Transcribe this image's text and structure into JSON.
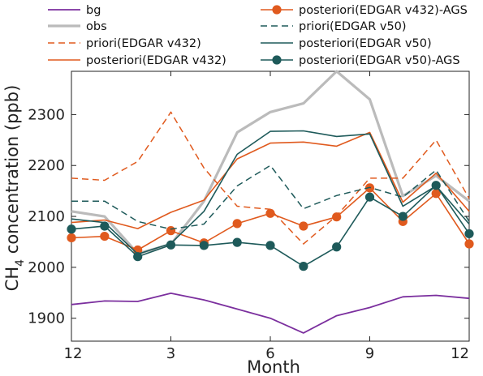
{
  "chart_data": {
    "type": "line",
    "xlabel": "Month",
    "ylabel_prefix": "CH",
    "ylabel_sub": "4",
    "ylabel_suffix": " concentration (ppb)",
    "x_positions": [
      0,
      1,
      2,
      3,
      4,
      5,
      6,
      7,
      8,
      9,
      10,
      11,
      12
    ],
    "xticks": [
      0,
      3,
      6,
      9,
      12
    ],
    "xtick_labels": [
      "12",
      "3",
      "6",
      "9",
      "12"
    ],
    "xlim": [
      0,
      12
    ],
    "ylim": [
      1855,
      2385
    ],
    "yticks": [
      1900,
      2000,
      2100,
      2200,
      2300
    ],
    "ytick_labels": [
      "1900",
      "2000",
      "2100",
      "2200",
      "2300"
    ],
    "legend_placement": "top",
    "series": [
      {
        "name": "bg",
        "color": "#7b2f9e",
        "dash": "solid",
        "marker": false,
        "width": 1.8,
        "values": [
          1927,
          1934,
          1933,
          1949,
          1936,
          1918,
          1900,
          1871,
          1905,
          1921,
          1942,
          1945,
          1939
        ]
      },
      {
        "name": "obs",
        "color": "#bbbbbb",
        "dash": "solid",
        "marker": false,
        "width": 3.2,
        "values": [
          2110,
          2100,
          2027,
          2045,
          2130,
          2265,
          2305,
          2322,
          2385,
          2330,
          2140,
          2180,
          2130
        ]
      },
      {
        "name": "priori(EDGAR v432)",
        "color": "#e05a1e",
        "dash": "dashed",
        "marker": false,
        "width": 1.5,
        "values": [
          2175,
          2171,
          2208,
          2305,
          2195,
          2120,
          2114,
          2046,
          2101,
          2175,
          2175,
          2250,
          2135
        ]
      },
      {
        "name": "posteriori(EDGAR v432)",
        "color": "#e05a1e",
        "dash": "solid",
        "marker": false,
        "width": 1.6,
        "values": [
          2088,
          2093,
          2076,
          2108,
          2132,
          2213,
          2244,
          2246,
          2238,
          2265,
          2128,
          2185,
          2110
        ]
      },
      {
        "name": "posteriori(EDGAR v432)-AGS",
        "color": "#e05a1e",
        "dash": "solid",
        "marker": true,
        "width": 1.6,
        "values": [
          2058,
          2061,
          2034,
          2072,
          2048,
          2086,
          2106,
          2081,
          2099,
          2156,
          2090,
          2145,
          2046
        ]
      },
      {
        "name": "priori(EDGAR v50)",
        "color": "#1e5a5a",
        "dash": "dashed",
        "marker": false,
        "width": 1.5,
        "values": [
          2130,
          2130,
          2090,
          2075,
          2085,
          2160,
          2200,
          2115,
          2141,
          2157,
          2138,
          2191,
          2090
        ]
      },
      {
        "name": "posteriori(EDGAR v50)",
        "color": "#1e5a5a",
        "dash": "solid",
        "marker": false,
        "width": 1.6,
        "values": [
          2095,
          2088,
          2026,
          2047,
          2110,
          2222,
          2267,
          2268,
          2257,
          2262,
          2120,
          2160,
          2085
        ]
      },
      {
        "name": "posteriori(EDGAR v50)-AGS",
        "color": "#1e5a5a",
        "dash": "solid",
        "marker": true,
        "width": 1.6,
        "values": [
          2075,
          2081,
          2021,
          2044,
          2043,
          2049,
          2043,
          2002,
          2040,
          2138,
          2100,
          2161,
          2066
        ]
      }
    ],
    "legend_left": [
      "bg",
      "obs",
      "priori(EDGAR v432)",
      "posteriori(EDGAR v432)"
    ],
    "legend_right": [
      "posteriori(EDGAR v432)-AGS",
      "priori(EDGAR v50)",
      "posteriori(EDGAR v50)",
      "posteriori(EDGAR v50)-AGS"
    ]
  }
}
